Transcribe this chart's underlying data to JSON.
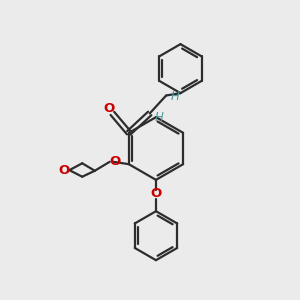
{
  "bg_color": "#ebebeb",
  "bond_color": "#2d2d2d",
  "oxygen_color": "#cc0000",
  "H_color": "#4a9999",
  "line_width": 1.6,
  "font_size_atom": 9.5,
  "font_size_H": 8.5,
  "xlim": [
    0,
    10
  ],
  "ylim": [
    0,
    10
  ],
  "figsize": [
    3.0,
    3.0
  ],
  "dpi": 100
}
